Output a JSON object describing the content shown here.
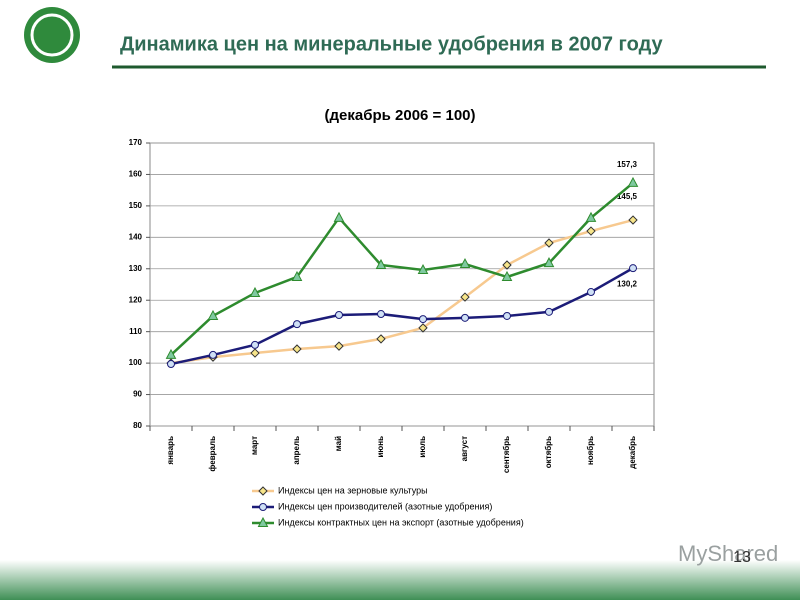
{
  "header": {
    "title": "Динамика цен на минеральные удобрения в 2007 году"
  },
  "page_number": "13",
  "watermark": "MyShared",
  "chart_data": {
    "type": "line",
    "subtitle": "(декабрь 2006 = 100)",
    "categories": [
      "январь",
      "февраль",
      "март",
      "апрель",
      "май",
      "июнь",
      "июль",
      "август",
      "сентябрь",
      "октябрь",
      "ноябрь",
      "декабрь"
    ],
    "series": [
      {
        "name": "Индексы цен на зерновые культуры",
        "color": "#f7c98f",
        "marker": "diamond",
        "values": [
          100,
          101.9,
          103.2,
          104.5,
          105.4,
          107.7,
          111.2,
          121,
          131.2,
          138.2,
          142,
          145.5
        ],
        "value_labels": [
          null,
          null,
          null,
          null,
          null,
          null,
          null,
          null,
          null,
          null,
          null,
          "145,5"
        ]
      },
      {
        "name": "Индексы цен производителей (азотные удобрения)",
        "color": "#1c1c78",
        "marker": "circle",
        "values": [
          99.7,
          102.6,
          105.8,
          112.4,
          115.3,
          115.6,
          114,
          114.4,
          115,
          116.3,
          122.6,
          130.2
        ],
        "value_labels": [
          null,
          null,
          null,
          null,
          null,
          null,
          null,
          null,
          null,
          null,
          null,
          "130,2"
        ]
      },
      {
        "name": "Индексы контрактных цен на экспорт (азотные удобрения)",
        "color": "#2e8b2e",
        "marker": "triangle",
        "values": [
          102.6,
          115,
          122.3,
          127.4,
          146.2,
          131.2,
          129.6,
          131.5,
          127.4,
          131.8,
          146.2,
          157.3
        ],
        "value_labels": [
          null,
          null,
          null,
          null,
          null,
          null,
          null,
          null,
          null,
          null,
          null,
          "157,3"
        ]
      }
    ],
    "ylim": [
      80,
      170
    ],
    "yticks": [
      80,
      90,
      100,
      110,
      120,
      130,
      140,
      150,
      160,
      170
    ],
    "grid": true,
    "legend": "bottom"
  }
}
